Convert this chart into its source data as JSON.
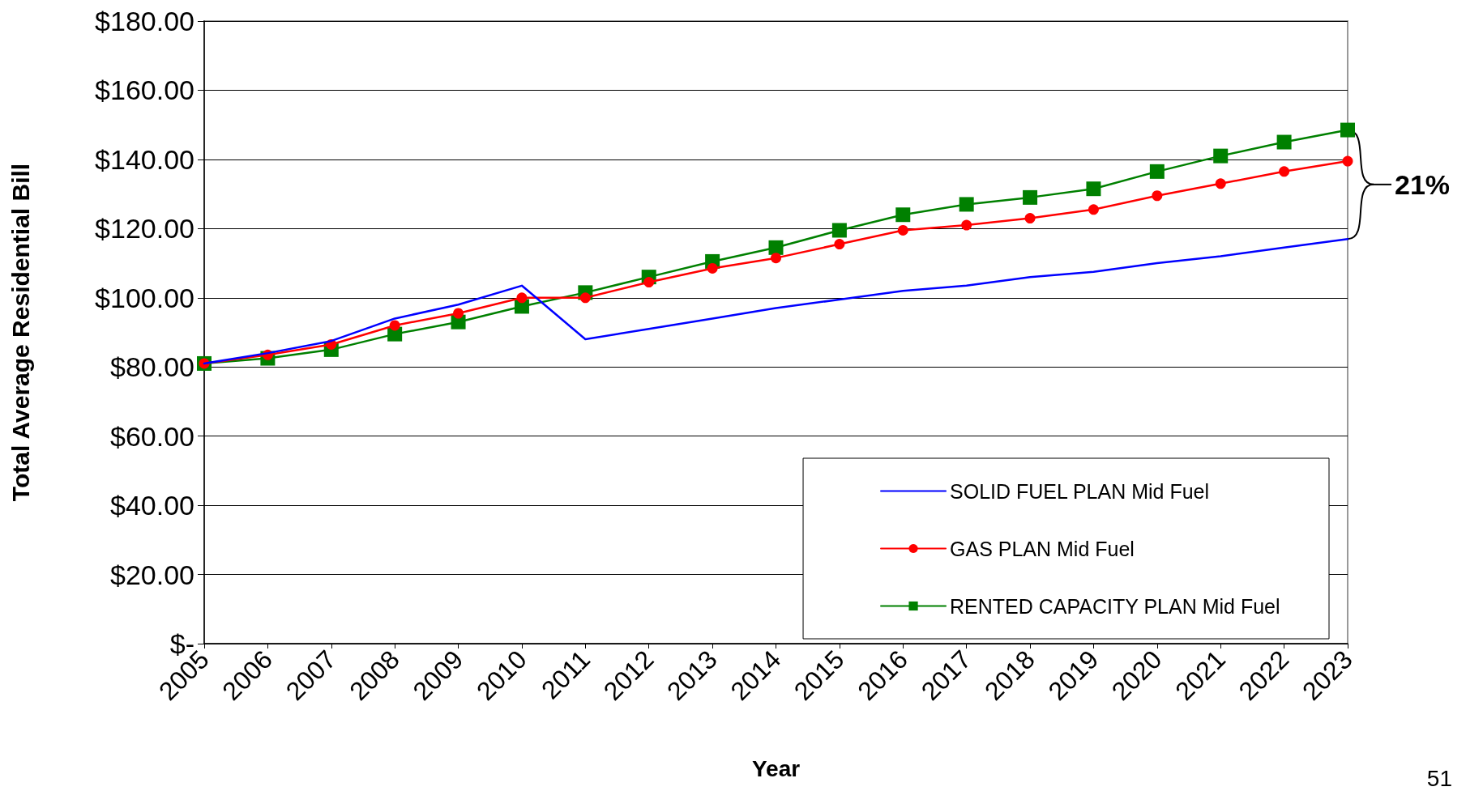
{
  "chart_data": {
    "type": "line",
    "xlabel": "Year",
    "ylabel": "Total Average Residential Bill",
    "categories": [
      "2005",
      "2006",
      "2007",
      "2008",
      "2009",
      "2010",
      "2011",
      "2012",
      "2013",
      "2014",
      "2015",
      "2016",
      "2017",
      "2018",
      "2019",
      "2020",
      "2021",
      "2022",
      "2023"
    ],
    "series": [
      {
        "name": "SOLID FUEL PLAN Mid Fuel",
        "color": "#0000ff",
        "marker": "none",
        "values": [
          81,
          84,
          87.5,
          94,
          98,
          103.5,
          88,
          91,
          94,
          97,
          99.5,
          102,
          103.5,
          106,
          107.5,
          110,
          112,
          114.5,
          117
        ]
      },
      {
        "name": "GAS PLAN Mid Fuel",
        "color": "#ff0000",
        "marker": "circle",
        "values": [
          81,
          83.5,
          86.5,
          92,
          95.5,
          100,
          100,
          104.5,
          108.5,
          111.5,
          115.5,
          119.5,
          121,
          123,
          125.5,
          129.5,
          133,
          136.5,
          139.5
        ]
      },
      {
        "name": "RENTED CAPACITY PLAN Mid Fuel",
        "color": "#008000",
        "marker": "square",
        "values": [
          81,
          82.5,
          85,
          89.5,
          93,
          97.5,
          101.5,
          106,
          110.5,
          114.5,
          119.5,
          124,
          127,
          129,
          131.5,
          136.5,
          141,
          145,
          148.5
        ]
      }
    ],
    "ylim": [
      0,
      180
    ],
    "yticks": [
      {
        "value": 0,
        "label": "$-"
      },
      {
        "value": 20,
        "label": "$20.00"
      },
      {
        "value": 40,
        "label": "$40.00"
      },
      {
        "value": 60,
        "label": "$60.00"
      },
      {
        "value": 80,
        "label": "$80.00"
      },
      {
        "value": 100,
        "label": "$100.00"
      },
      {
        "value": 120,
        "label": "$120.00"
      },
      {
        "value": 140,
        "label": "$140.00"
      },
      {
        "value": 160,
        "label": "$160.00"
      },
      {
        "value": 180,
        "label": "$180.00"
      }
    ],
    "grid": "y",
    "legend": "bottom right",
    "line_style": "solid",
    "annotations": [
      {
        "text": "21%",
        "x": "2023",
        "y": 117
      },
      "51"
    ]
  }
}
